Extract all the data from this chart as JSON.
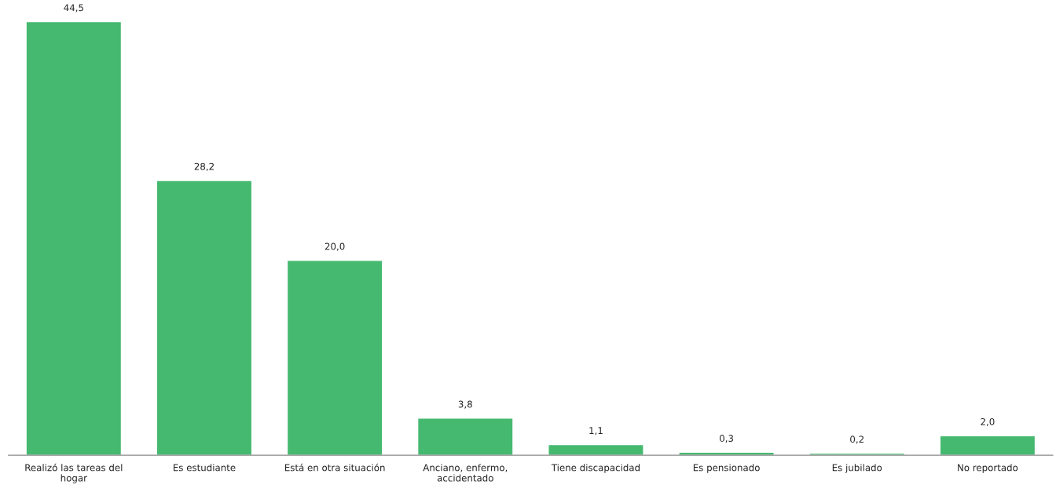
{
  "chart_data": {
    "type": "bar",
    "categories": [
      "Realizó las tareas del hogar",
      "Es estudiante",
      "Está en otra situación",
      "Anciano, enfermo, accidentado",
      "Tiene discapacidad",
      "Es pensionado",
      "Es jubilado",
      "No reportado"
    ],
    "values": [
      44.5,
      28.2,
      20.0,
      3.8,
      1.1,
      0.3,
      0.2,
      2.0
    ],
    "value_labels": [
      "44,5",
      "28,2",
      "20,0",
      "3,8",
      "1,1",
      "0,3",
      "0,2",
      "2,0"
    ],
    "color": "#45b96f"
  }
}
